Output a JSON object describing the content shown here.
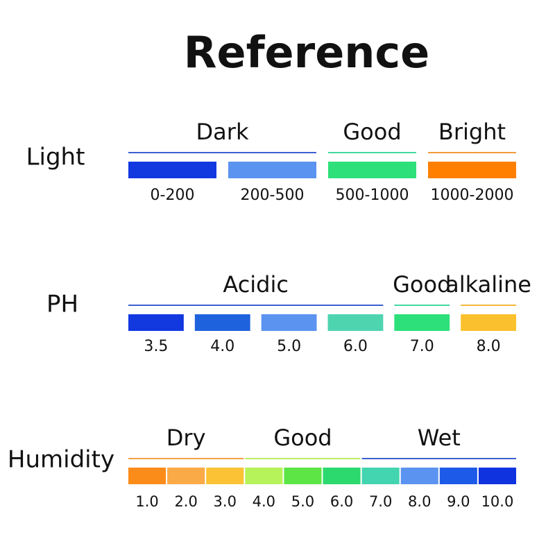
{
  "title": "Reference",
  "sections": [
    {
      "label": "Light",
      "groups": [
        {
          "label": "Dark",
          "color": "#3a5fd0",
          "swatches": [
            {
              "color": "#1238e0",
              "label": "0-200"
            },
            {
              "color": "#5b93f0",
              "label": "200-500"
            }
          ]
        },
        {
          "label": "Good",
          "color": "#43d8a0",
          "swatches": [
            {
              "color": "#2de07a",
              "label": "500-1000"
            }
          ]
        },
        {
          "label": "Bright",
          "color": "#f59a3a",
          "swatches": [
            {
              "color": "#ff8000",
              "label": "1000-2000"
            }
          ]
        }
      ]
    },
    {
      "label": "PH",
      "groups": [
        {
          "label": "Acidic",
          "color": "#3a5fd0",
          "swatches": [
            {
              "color": "#1238e0",
              "label": "3.5"
            },
            {
              "color": "#1f62dd",
              "label": "4.0"
            },
            {
              "color": "#5b93f0",
              "label": "5.0"
            },
            {
              "color": "#4fd4b0",
              "label": "6.0"
            }
          ]
        },
        {
          "label": "Good",
          "color": "#43d8a0",
          "swatches": [
            {
              "color": "#2de07a",
              "label": "7.0"
            }
          ]
        },
        {
          "label": "alkaline",
          "color": "#f5b83a",
          "swatches": [
            {
              "color": "#fbc02d",
              "label": "8.0"
            }
          ]
        }
      ]
    },
    {
      "label": "Humidity",
      "groups": [
        {
          "label": "Dry",
          "color": "#f5a040",
          "swatches": [
            {
              "color": "#fb8c1a",
              "label": "1.0"
            },
            {
              "color": "#fbaa48",
              "label": "2.0"
            },
            {
              "color": "#fbc235",
              "label": "3.0"
            }
          ]
        },
        {
          "label": "Good",
          "color": "#b8f060",
          "swatches": [
            {
              "color": "#b6f25a",
              "label": "4.0"
            },
            {
              "color": "#5ce545",
              "label": "5.0"
            },
            {
              "color": "#2bd96e",
              "label": "6.0"
            }
          ]
        },
        {
          "label": "Wet",
          "color": "#3a5fd0",
          "swatches": [
            {
              "color": "#43d4b0",
              "label": "7.0"
            },
            {
              "color": "#5b93f0",
              "label": "8.0"
            },
            {
              "color": "#1e5ae8",
              "label": "9.0"
            },
            {
              "color": "#1033e0",
              "label": "10.0"
            }
          ]
        }
      ]
    }
  ]
}
